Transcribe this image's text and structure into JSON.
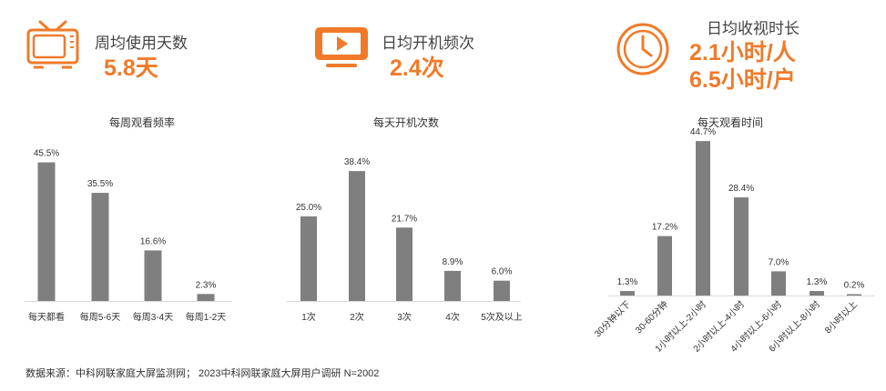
{
  "accent_color": "#f07a2a",
  "bar_color": "#7f7f7f",
  "stats": [
    {
      "icon": "tv-icon",
      "label": "周均使用天数",
      "value": "5.8天"
    },
    {
      "icon": "play-screen-icon",
      "label": "日均开机频次",
      "value": "2.4次"
    },
    {
      "icon": "clock-icon",
      "label": "日均收视时长",
      "value_line1": "2.1小时/人",
      "value_line2": "6.5小时/户"
    }
  ],
  "chart_data": [
    {
      "type": "bar",
      "title": "每周观看频率",
      "categories": [
        "每天都看",
        "每周5-6天",
        "每周3-4天",
        "每周1-2天"
      ],
      "values": [
        45.5,
        35.5,
        16.6,
        2.3
      ],
      "labels": [
        "45.5%",
        "35.5%",
        "16.6%",
        "2.3%"
      ]
    },
    {
      "type": "bar",
      "title": "每天开机次数",
      "categories": [
        "1次",
        "2次",
        "3次",
        "4次",
        "5次及以上"
      ],
      "values": [
        25.0,
        38.4,
        21.7,
        8.9,
        6.0
      ],
      "labels": [
        "25.0%",
        "38.4%",
        "21.7%",
        "8.9%",
        "6.0%"
      ]
    },
    {
      "type": "bar",
      "title": "每天观看时间",
      "categories": [
        "30分钟以下",
        "30-60分钟",
        "1小时以上-2小时",
        "2小时以上-4小时",
        "4小时以上-6小时",
        "6小时以上-8小时",
        "8小时以上"
      ],
      "values": [
        1.3,
        17.2,
        44.7,
        28.4,
        7.0,
        1.3,
        0.2
      ],
      "labels": [
        "1.3%",
        "17.2%",
        "44.7%",
        "28.4%",
        "7.0%",
        "1.3%",
        "0.2%"
      ]
    }
  ],
  "source": "数据来源：中科网联家庭大屏监测网；  2023中科网联家庭大屏用户调研 N=2002"
}
